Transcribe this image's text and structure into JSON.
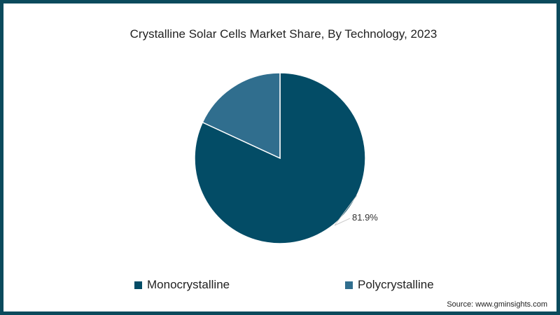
{
  "chart_data": {
    "type": "pie",
    "title": "Crystalline Solar Cells Market Share, By Technology, 2023",
    "categories": [
      "Monocrystalline",
      "Polycrystalline"
    ],
    "values": [
      81.9,
      18.1
    ],
    "colors": [
      "#034c66",
      "#306e8e"
    ],
    "data_labels": [
      "81.9%",
      ""
    ],
    "legend_position": "bottom",
    "source": "Source: www.gminsights.com"
  },
  "title": "Crystalline Solar Cells Market Share, By Technology, 2023",
  "label_mono": "81.9%",
  "legend": [
    {
      "label": "Monocrystalline",
      "color": "#034c66"
    },
    {
      "label": "Polycrystalline",
      "color": "#306e8e"
    }
  ],
  "source": "Source: www.gminsights.com",
  "colors": {
    "border": "#0b4a5c"
  }
}
